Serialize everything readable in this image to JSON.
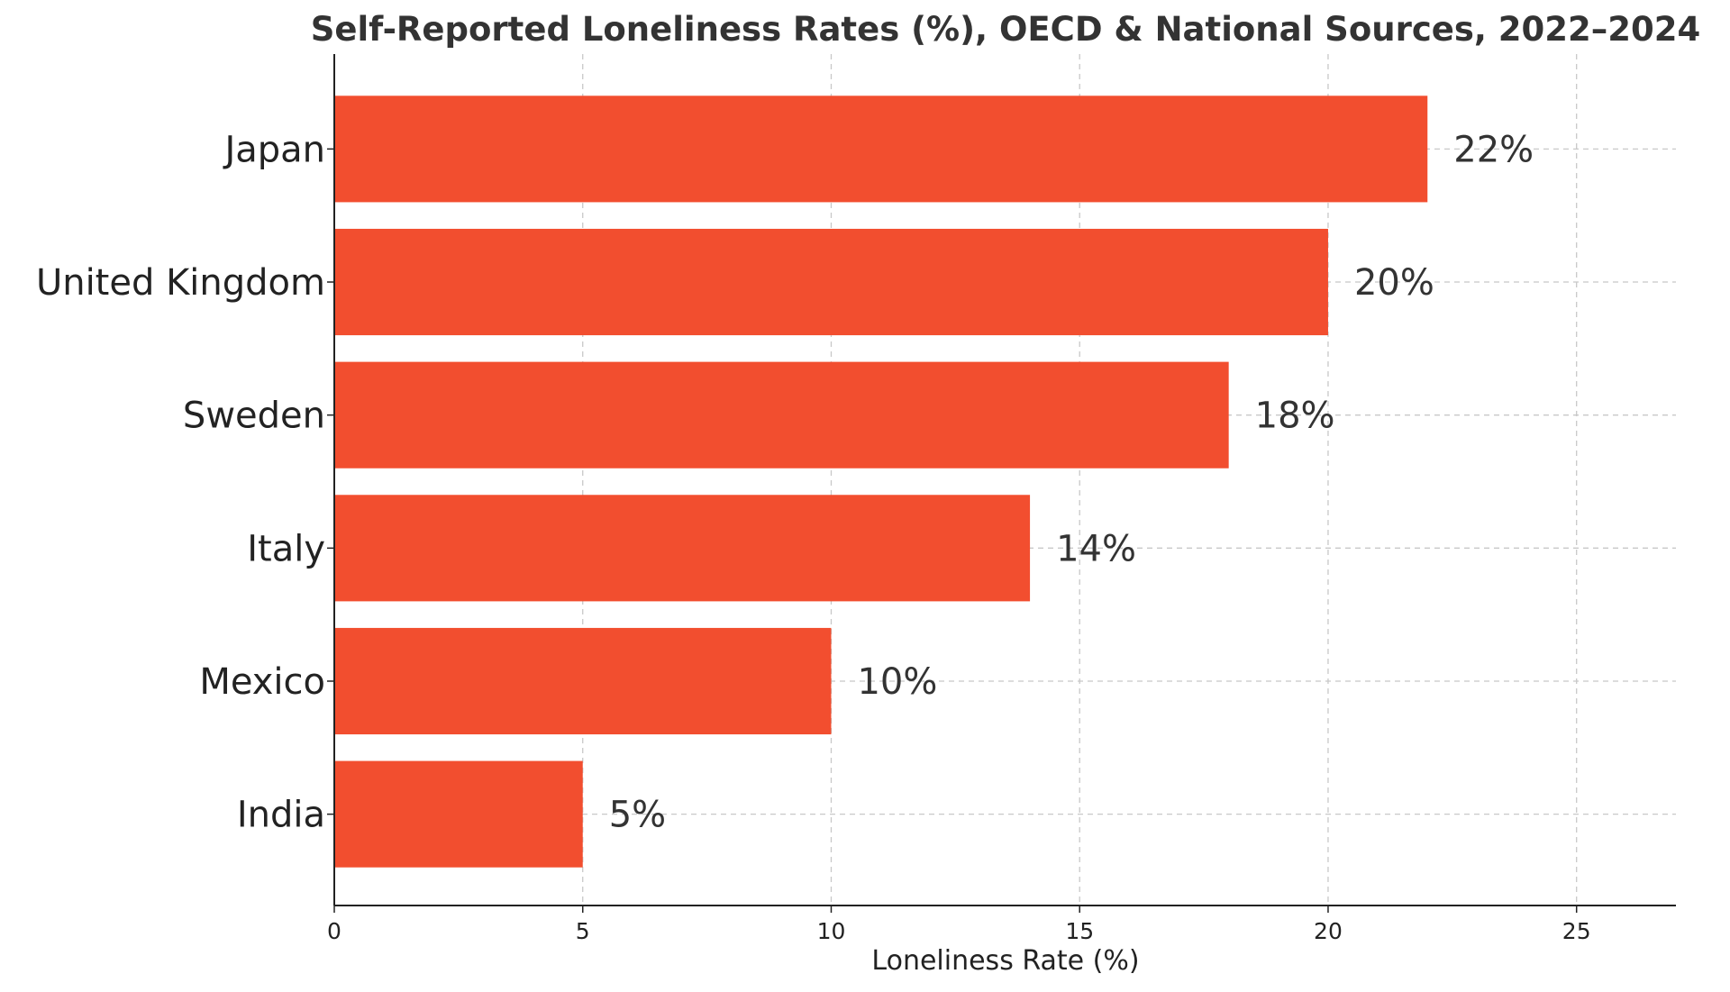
{
  "chart_data": {
    "type": "bar",
    "orientation": "horizontal",
    "title": "Self-Reported Loneliness Rates (%), OECD & National Sources, 2022–2024",
    "xlabel": "Loneliness Rate (%)",
    "ylabel": "",
    "categories": [
      "Japan",
      "United Kingdom",
      "Sweden",
      "Italy",
      "Mexico",
      "India"
    ],
    "values": [
      22,
      20,
      18,
      14,
      10,
      5
    ],
    "data_labels": [
      "22%",
      "20%",
      "18%",
      "14%",
      "10%",
      "5%"
    ],
    "xlim": [
      0,
      27
    ],
    "xticks": [
      0,
      5,
      10,
      15,
      20,
      25
    ],
    "xtick_labels": [
      "0",
      "5",
      "10",
      "15",
      "20",
      "25"
    ],
    "grid": true,
    "bar_color": "#f24e2f"
  }
}
